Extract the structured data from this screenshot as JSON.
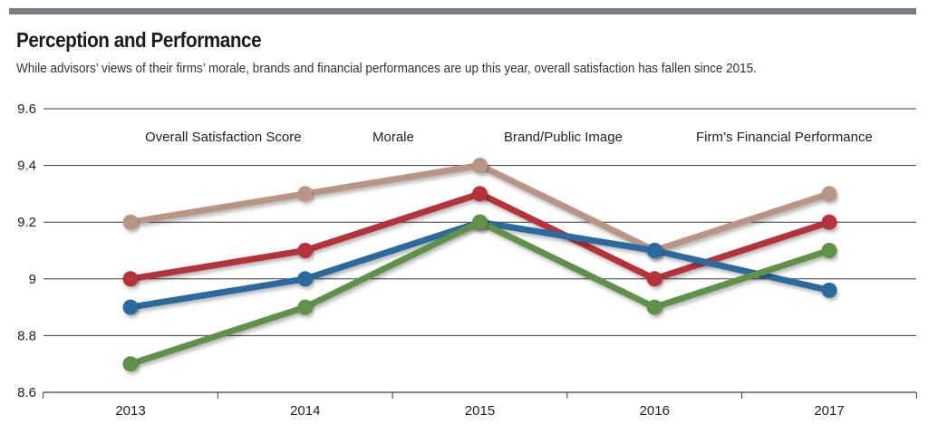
{
  "chart_data": {
    "type": "line",
    "title": "Perception and Performance",
    "subtitle": "While advisors’ views of their firms’ morale, brands and financial performances are up this year, overall satisfaction has fallen since 2015.",
    "x": [
      "2013",
      "2014",
      "2015",
      "2016",
      "2017"
    ],
    "ylim": [
      8.6,
      9.6
    ],
    "yticks": [
      {
        "value": 8.6,
        "label": "8.6"
      },
      {
        "value": 8.8,
        "label": "8.8"
      },
      {
        "value": 9.0,
        "label": "9"
      },
      {
        "value": 9.2,
        "label": "9.2"
      },
      {
        "value": 9.4,
        "label": "9.4"
      },
      {
        "value": 9.6,
        "label": "9.6"
      }
    ],
    "grid": true,
    "legend_position": "top",
    "series": [
      {
        "name": "Overall Satisfaction Score",
        "color": "#2a6a9e",
        "values": [
          8.9,
          9.0,
          9.2,
          9.1,
          8.96
        ]
      },
      {
        "name": "Morale",
        "color": "#b5313b",
        "values": [
          9.0,
          9.1,
          9.3,
          9.0,
          9.2
        ]
      },
      {
        "name": "Brand/Public Image",
        "color": "#5f9148",
        "values": [
          8.7,
          8.9,
          9.2,
          8.9,
          9.1
        ]
      },
      {
        "name": "Firm’s Financial Performance",
        "color": "#b99585",
        "values": [
          9.2,
          9.3,
          9.4,
          9.1,
          9.3
        ]
      }
    ]
  }
}
